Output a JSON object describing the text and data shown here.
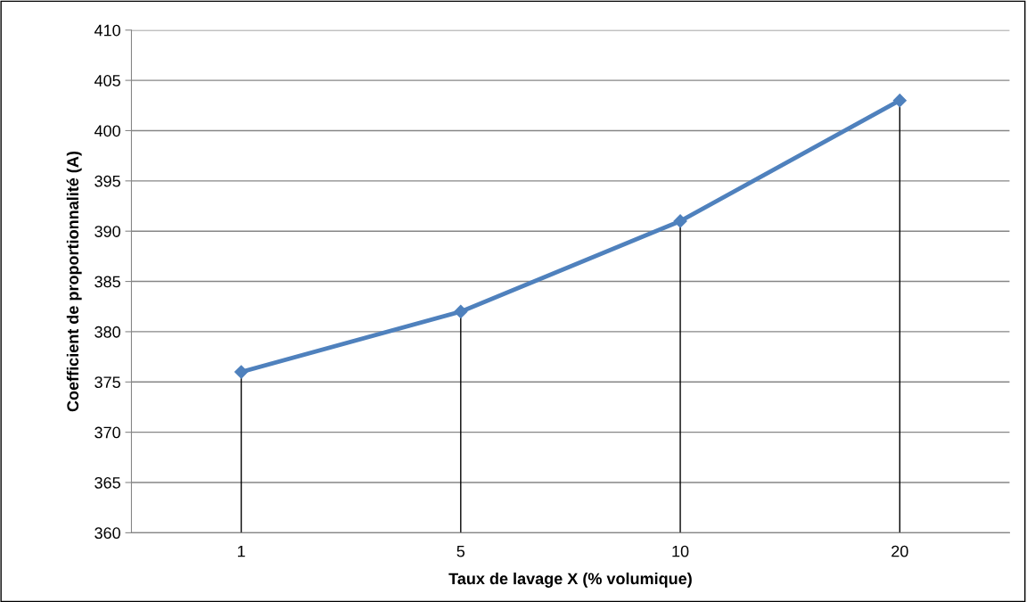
{
  "chart_data": {
    "type": "line",
    "xlabel": "Taux de lavage X (% volumique)",
    "ylabel": "Coefficient de proportionnalité (A)",
    "categories": [
      "1",
      "5",
      "10",
      "20"
    ],
    "series": [
      {
        "color": "#4f81bd",
        "values": [
          376,
          382,
          391,
          403
        ]
      },
      {
        "type": "lollipop",
        "color": "#4f81bd",
        "marker": "diamond",
        "values": [
          376,
          382,
          391,
          403
        ]
      }
    ],
    "ylim": [
      360,
      410
    ],
    "yticks": [
      360,
      365,
      370,
      375,
      380,
      385,
      390,
      395,
      400,
      405,
      410
    ],
    "grid": "y",
    "line_style": "solid"
  }
}
